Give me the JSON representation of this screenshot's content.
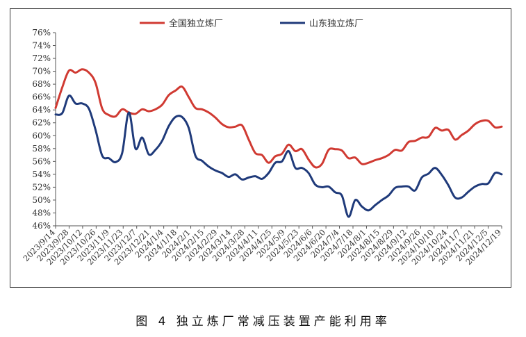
{
  "caption": "图 4  独立炼厂常减压装置产能利用率",
  "chart_data": {
    "type": "line",
    "title": "",
    "xlabel": "",
    "ylabel": "",
    "ylim": [
      46,
      76
    ],
    "yticks": [
      "46%",
      "48%",
      "50%",
      "52%",
      "54%",
      "56%",
      "58%",
      "60%",
      "62%",
      "64%",
      "66%",
      "68%",
      "70%",
      "72%",
      "74%",
      "76%"
    ],
    "x_tick_labels": [
      "2023/9/14",
      "2023/9/28",
      "2023/10/12",
      "2023/10/26",
      "2023/11/9",
      "2023/11/23",
      "2023/12/7",
      "2023/12/21",
      "2024/1/4",
      "2024/1/18",
      "2024/2/1",
      "2024/2/15",
      "2024/2/29",
      "2024/3/14",
      "2024/3/28",
      "2024/4/11",
      "2024/4/25",
      "2024/5/9",
      "2024/5/23",
      "2024/6/6",
      "2024/6/20",
      "2024/7/4",
      "2024/7/18",
      "2024/8/1",
      "2024/8/15",
      "2024/8/29",
      "2024/9/12",
      "2024/9/26",
      "2024/10/10",
      "2024/10/24",
      "2024/11/7",
      "2024/11/21",
      "2024/12/5",
      "2024/12/19"
    ],
    "legend": "top-center",
    "grid": false,
    "colors": {
      "national": "#d03a32",
      "shandong": "#1f3a7a"
    },
    "series": [
      {
        "name": "全国独立炼厂",
        "values": [
          64.3,
          67.5,
          70.1,
          69.8,
          70.3,
          69.8,
          68.2,
          64.2,
          63.2,
          63.0,
          64.1,
          63.6,
          63.4,
          64.1,
          63.8,
          64.1,
          64.8,
          66.3,
          67.0,
          67.6,
          66.0,
          64.3,
          64.1,
          63.6,
          62.8,
          61.8,
          61.3,
          61.4,
          61.6,
          59.4,
          57.3,
          57.0,
          55.8,
          56.8,
          57.2,
          58.6,
          57.6,
          57.9,
          56.3,
          55.1,
          55.6,
          57.8,
          57.9,
          57.7,
          56.5,
          56.6,
          55.6,
          55.8,
          56.2,
          56.5,
          57.0,
          57.8,
          57.7,
          59.0,
          59.2,
          59.7,
          59.8,
          61.2,
          60.8,
          60.9,
          59.4,
          60.1,
          60.8,
          61.8,
          62.3,
          62.3,
          61.3,
          61.4
        ]
      },
      {
        "name": "山东独立炼厂",
        "values": [
          63.3,
          63.5,
          66.2,
          65.0,
          65.0,
          64.2,
          60.9,
          56.9,
          56.5,
          55.9,
          57.3,
          63.6,
          58.0,
          59.7,
          57.1,
          57.8,
          59.2,
          61.5,
          62.9,
          62.9,
          61.2,
          56.9,
          56.1,
          55.2,
          54.6,
          54.2,
          53.6,
          54.0,
          53.2,
          53.5,
          53.7,
          53.3,
          54.2,
          55.8,
          56.0,
          57.6,
          55.0,
          55.0,
          54.2,
          52.4,
          52.0,
          52.1,
          51.2,
          50.7,
          47.4,
          50.0,
          49.0,
          48.4,
          49.2,
          50.0,
          50.7,
          51.9,
          52.1,
          52.1,
          51.5,
          53.5,
          54.1,
          55.0,
          53.9,
          52.3,
          50.4,
          50.4,
          51.3,
          52.1,
          52.5,
          52.6,
          54.2,
          54.0
        ]
      }
    ]
  }
}
